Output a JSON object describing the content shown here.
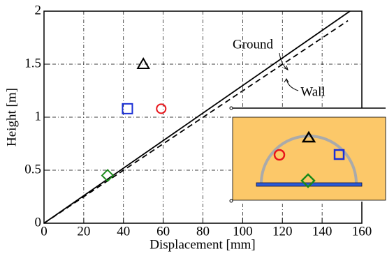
{
  "chart_data": {
    "type": "scatter",
    "xlabel": "Displacement [mm]",
    "ylabel": "Height [m]",
    "xlim": [
      0,
      160
    ],
    "ylim": [
      0,
      2
    ],
    "xticks": [
      0,
      20,
      40,
      60,
      80,
      100,
      120,
      140,
      160
    ],
    "yticks": [
      0,
      0.5,
      1,
      1.5,
      2
    ],
    "grid": true,
    "lines": [
      {
        "name": "Ground",
        "color": "#000000",
        "dashed": false,
        "x": [
          0,
          154
        ],
        "values": [
          0,
          2
        ]
      },
      {
        "name": "Wall",
        "color": "#000000",
        "dashed": true,
        "x": [
          0,
          153
        ],
        "values": [
          0,
          1.91
        ]
      }
    ],
    "series": [
      {
        "marker": "triangle",
        "color": "#000000",
        "x": [
          50
        ],
        "values": [
          1.5
        ]
      },
      {
        "marker": "square",
        "color": "#1a2fd6",
        "x": [
          42
        ],
        "values": [
          1.08
        ]
      },
      {
        "marker": "circle",
        "color": "#e8141a",
        "x": [
          59
        ],
        "values": [
          1.08
        ]
      },
      {
        "marker": "diamond",
        "color": "#1a8a1a",
        "x": [
          32
        ],
        "values": [
          0.45
        ]
      }
    ]
  }
}
